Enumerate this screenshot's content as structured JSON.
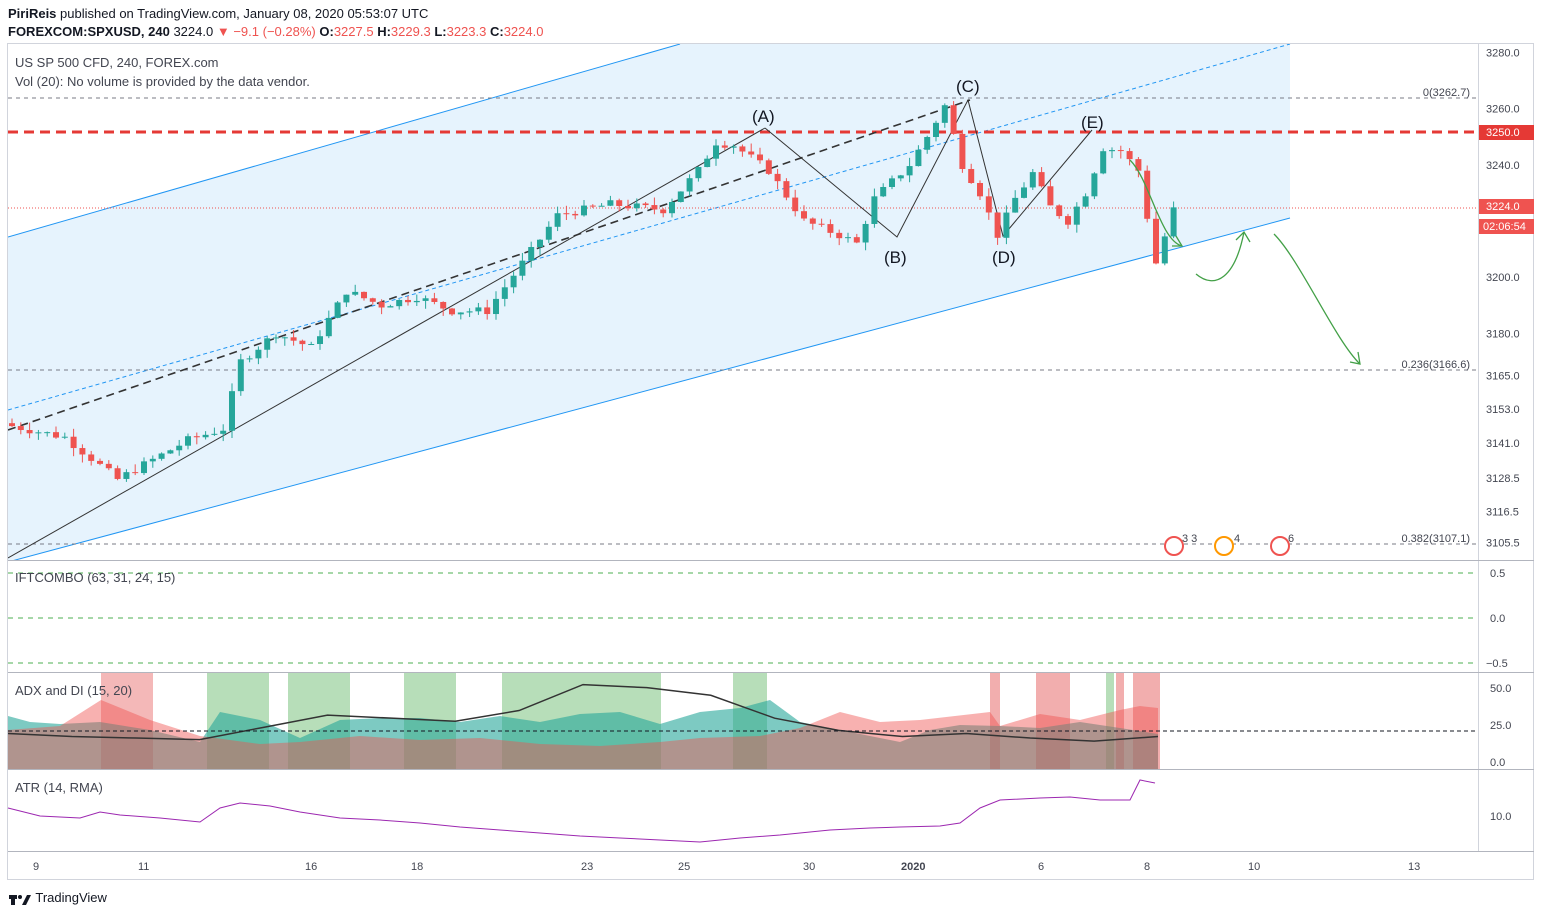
{
  "header": {
    "publisher": "PiriReis",
    "published_text": "published on TradingView.com, January 08, 2020 05:53:07 UTC",
    "symbol": "FOREXCOM:SPXUSD, 240",
    "last": "3224.0",
    "change": "−9.1 (−0.28%)",
    "open_label": "O:",
    "open": "3227.5",
    "high_label": "H:",
    "high": "3229.3",
    "low_label": "L:",
    "low": "3223.3",
    "close_label": "C:",
    "close": "3224.0"
  },
  "main_pane": {
    "title": "US SP 500 CFD, 240, FOREX.com",
    "volume_note": "Vol (20): No volume is provided by the data vendor.",
    "price_badge": "3224.0",
    "countdown_badge": "02:06:54",
    "level_badge": "3250.0",
    "wave_labels": [
      "(A)",
      "(B)",
      "(C)",
      "(D)",
      "(E)"
    ],
    "fib_levels": [
      "0(3262.7)",
      "0.236(3166.6)",
      "0.382(3107.1)"
    ],
    "event_badges": [
      "3 3",
      "4",
      "6"
    ]
  },
  "indicators": {
    "iftcombo": {
      "title": "IFTCOMBO (63, 31, 24, 15)",
      "ticks": [
        "0.5",
        "0.0",
        "−0.5"
      ]
    },
    "adx": {
      "title": "ADX and DI (15, 20)",
      "ticks": [
        "50.0",
        "25.0",
        "0.0"
      ]
    },
    "atr": {
      "title": "ATR (14, RMA)",
      "ticks": [
        "10.0"
      ]
    }
  },
  "x_axis_labels": [
    "9",
    "11",
    "16",
    "18",
    "23",
    "25",
    "30",
    "2020",
    "6",
    "8",
    "10",
    "13"
  ],
  "footer": {
    "brand": "TradingView"
  },
  "colors": {
    "bull": "#26a69a",
    "bear": "#ef5350",
    "channel_fill": "#e3f2fd",
    "channel_line": "#2196f3",
    "resistance": "#e53935",
    "arrow": "#43a047",
    "atr": "#9c27b0",
    "adx": "#333333"
  },
  "chart_data": {
    "type": "candlestick",
    "symbol": "FOREXCOM:SPXUSD",
    "timeframe": "240",
    "title": "US SP 500 CFD, 240, FOREX.com",
    "y_axis_ticks": [
      3280.0,
      3260.0,
      3250.0,
      3240.0,
      3224.0,
      3200.0,
      3180.0,
      3165.0,
      3153.0,
      3141.0,
      3128.5,
      3116.5,
      3105.5
    ],
    "ylim": [
      3100,
      3283
    ],
    "x_tick_labels": [
      "9",
      "11",
      "16",
      "18",
      "23",
      "25",
      "30",
      "2020",
      "6",
      "8",
      "10",
      "13"
    ],
    "last_price": 3224.0,
    "resistance_level": 3250.0,
    "fibonacci": [
      {
        "level": "0",
        "price": 3262.7
      },
      {
        "level": "0.236",
        "price": 3166.6
      },
      {
        "level": "0.382",
        "price": 3107.1
      }
    ],
    "close_path": [
      [
        0,
        3147
      ],
      [
        6,
        3143
      ],
      [
        10,
        3133
      ],
      [
        12,
        3128
      ],
      [
        16,
        3135
      ],
      [
        20,
        3142
      ],
      [
        24,
        3146
      ],
      [
        26,
        3170
      ],
      [
        30,
        3180
      ],
      [
        34,
        3175
      ],
      [
        38,
        3195
      ],
      [
        42,
        3190
      ],
      [
        46,
        3193
      ],
      [
        50,
        3188
      ],
      [
        54,
        3188
      ],
      [
        58,
        3205
      ],
      [
        62,
        3222
      ],
      [
        68,
        3226
      ],
      [
        74,
        3224
      ],
      [
        78,
        3238
      ],
      [
        80,
        3248
      ],
      [
        82,
        3247
      ],
      [
        86,
        3238
      ],
      [
        90,
        3220
      ],
      [
        94,
        3215
      ],
      [
        96,
        3212
      ],
      [
        98,
        3228
      ],
      [
        102,
        3240
      ],
      [
        104,
        3250
      ],
      [
        106,
        3261
      ],
      [
        108,
        3240
      ],
      [
        110,
        3230
      ],
      [
        112,
        3215
      ],
      [
        114,
        3228
      ],
      [
        116,
        3237
      ],
      [
        118,
        3225
      ],
      [
        120,
        3220
      ],
      [
        122,
        3230
      ],
      [
        124,
        3246
      ],
      [
        126,
        3245
      ],
      [
        128,
        3238
      ],
      [
        130,
        3205
      ],
      [
        132,
        3224
      ]
    ],
    "adx": {
      "ylim": [
        0,
        55
      ],
      "adx_line": [
        20,
        18,
        17,
        16,
        24,
        32,
        30,
        28,
        35,
        52,
        50,
        45,
        30,
        22,
        18,
        20,
        17,
        15,
        18
      ]
    },
    "atr": {
      "ticks": [
        10.0
      ]
    }
  }
}
